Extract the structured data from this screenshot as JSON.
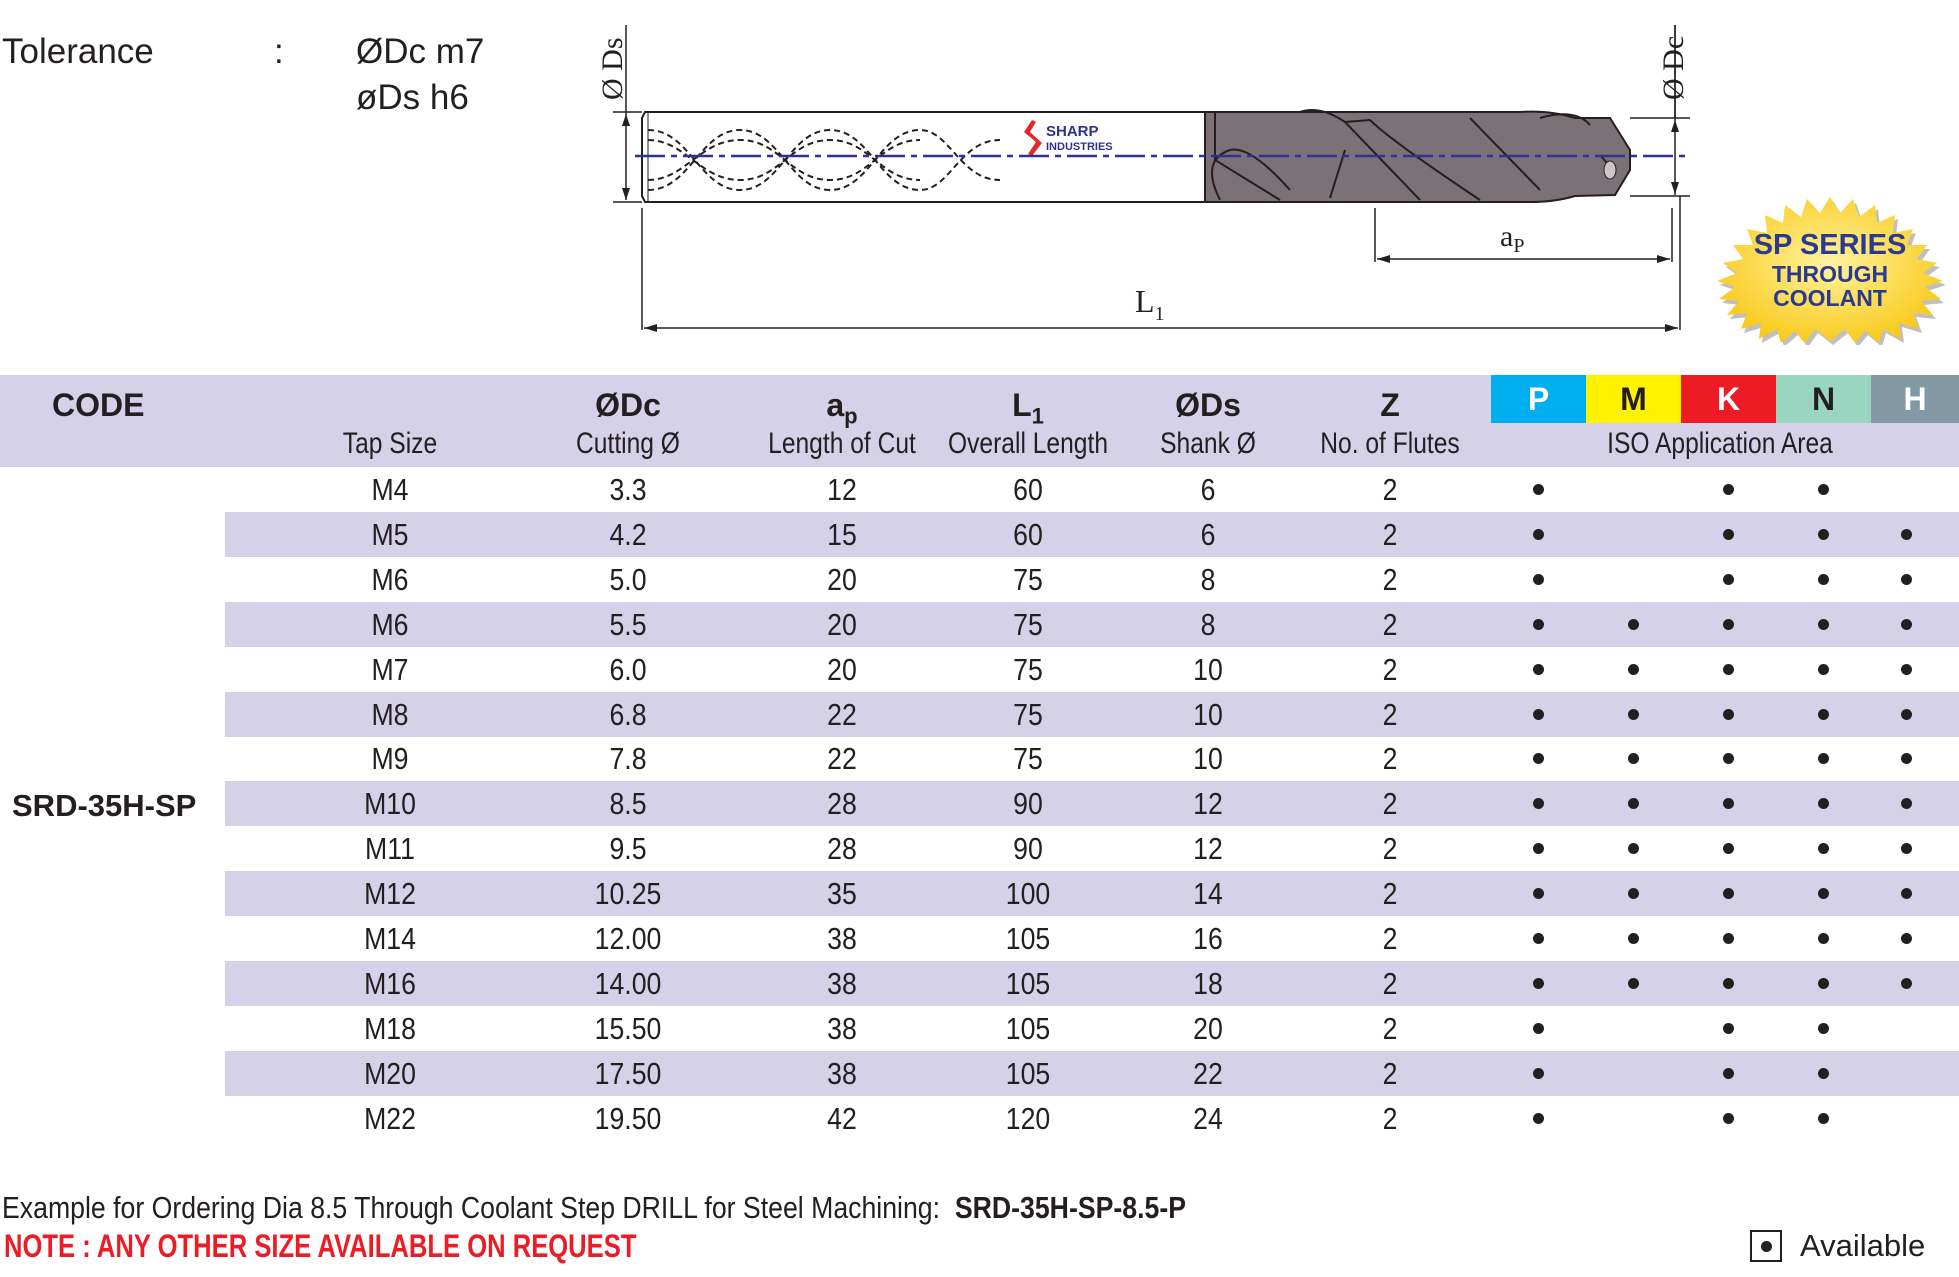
{
  "tolerance": {
    "label": "Tolerance",
    "colon": ":",
    "lines": [
      "ØDc m7",
      "øDs  h6"
    ]
  },
  "drawing": {
    "ds_label": "Ø Ds",
    "dc_label": "Ø Dc",
    "ap_label": "ap",
    "l1_label": "L1",
    "logo_line1": "SHARP",
    "logo_line2": "INDUSTRIES",
    "centerline_color": "#2e3192",
    "flute_color": "#7b7278"
  },
  "badge": {
    "line1": "SP SERIES",
    "line2": "THROUGH",
    "line3": "COOLANT",
    "color": "#fcd116"
  },
  "table": {
    "header": {
      "code": "CODE",
      "tap_size": "Tap Size",
      "dc": "ØDc",
      "dc_sub": "Cutting Ø",
      "ap": "a",
      "ap_subscript": "p",
      "ap_sub": "Length of Cut",
      "l1": "L",
      "l1_subscript": "1",
      "l1_sub": "Overall Length",
      "ds": "ØDs",
      "ds_sub": "Shank Ø",
      "z": "Z",
      "z_sub": "No. of Flutes",
      "iso_sub": "ISO Application Area"
    },
    "iso": [
      {
        "label": "P",
        "bg": "#00aeef",
        "fg": "#ffffff"
      },
      {
        "label": "M",
        "bg": "#fff200",
        "fg": "#231f20"
      },
      {
        "label": "K",
        "bg": "#ed1c24",
        "fg": "#ffffff"
      },
      {
        "label": "N",
        "bg": "#99d5c0",
        "fg": "#231f20"
      },
      {
        "label": "H",
        "bg": "#8499a6",
        "fg": "#ffffff"
      }
    ],
    "code": "SRD-35H-SP",
    "rows": [
      {
        "tap": "M4",
        "dc": "3.3",
        "ap": "12",
        "l1": "60",
        "ds": "6",
        "z": "2",
        "iso": [
          1,
          0,
          1,
          1,
          0
        ]
      },
      {
        "tap": "M5",
        "dc": "4.2",
        "ap": "15",
        "l1": "60",
        "ds": "6",
        "z": "2",
        "iso": [
          1,
          0,
          1,
          1,
          1
        ]
      },
      {
        "tap": "M6",
        "dc": "5.0",
        "ap": "20",
        "l1": "75",
        "ds": "8",
        "z": "2",
        "iso": [
          1,
          0,
          1,
          1,
          1
        ]
      },
      {
        "tap": "M6",
        "dc": "5.5",
        "ap": "20",
        "l1": "75",
        "ds": "8",
        "z": "2",
        "iso": [
          1,
          1,
          1,
          1,
          1
        ]
      },
      {
        "tap": "M7",
        "dc": "6.0",
        "ap": "20",
        "l1": "75",
        "ds": "10",
        "z": "2",
        "iso": [
          1,
          1,
          1,
          1,
          1
        ]
      },
      {
        "tap": "M8",
        "dc": "6.8",
        "ap": "22",
        "l1": "75",
        "ds": "10",
        "z": "2",
        "iso": [
          1,
          1,
          1,
          1,
          1
        ]
      },
      {
        "tap": "M9",
        "dc": "7.8",
        "ap": "22",
        "l1": "75",
        "ds": "10",
        "z": "2",
        "iso": [
          1,
          1,
          1,
          1,
          1
        ]
      },
      {
        "tap": "M10",
        "dc": "8.5",
        "ap": "28",
        "l1": "90",
        "ds": "12",
        "z": "2",
        "iso": [
          1,
          1,
          1,
          1,
          1
        ]
      },
      {
        "tap": "M11",
        "dc": "9.5",
        "ap": "28",
        "l1": "90",
        "ds": "12",
        "z": "2",
        "iso": [
          1,
          1,
          1,
          1,
          1
        ]
      },
      {
        "tap": "M12",
        "dc": "10.25",
        "ap": "35",
        "l1": "100",
        "ds": "14",
        "z": "2",
        "iso": [
          1,
          1,
          1,
          1,
          1
        ]
      },
      {
        "tap": "M14",
        "dc": "12.00",
        "ap": "38",
        "l1": "105",
        "ds": "16",
        "z": "2",
        "iso": [
          1,
          1,
          1,
          1,
          1
        ]
      },
      {
        "tap": "M16",
        "dc": "14.00",
        "ap": "38",
        "l1": "105",
        "ds": "18",
        "z": "2",
        "iso": [
          1,
          1,
          1,
          1,
          1
        ]
      },
      {
        "tap": "M18",
        "dc": "15.50",
        "ap": "38",
        "l1": "105",
        "ds": "20",
        "z": "2",
        "iso": [
          1,
          0,
          1,
          1,
          0
        ]
      },
      {
        "tap": "M20",
        "dc": "17.50",
        "ap": "38",
        "l1": "105",
        "ds": "22",
        "z": "2",
        "iso": [
          1,
          0,
          1,
          1,
          0
        ]
      },
      {
        "tap": "M22",
        "dc": "19.50",
        "ap": "42",
        "l1": "120",
        "ds": "24",
        "z": "2",
        "iso": [
          1,
          0,
          1,
          1,
          0
        ]
      }
    ],
    "shade_color": "#d5d1e8"
  },
  "footer": {
    "example_text": "Example for Ordering Dia 8.5 Through Coolant Step DRILL for Steel Machining:",
    "example_code": "SRD-35H-SP-8.5-P",
    "note": "NOTE : ANY OTHER SIZE AVAILABLE ON REQUEST",
    "note_color": "#ed1c24",
    "legend_label": "Available"
  }
}
